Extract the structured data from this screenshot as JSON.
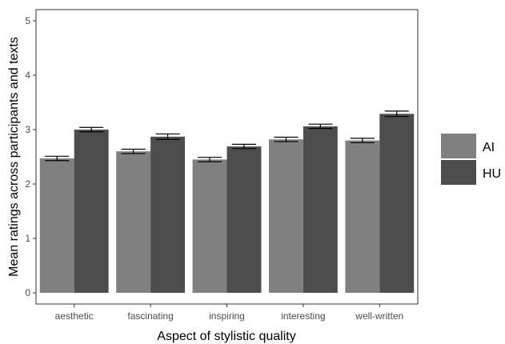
{
  "chart_data": {
    "type": "bar",
    "xlabel": "Aspect of stylistic quality",
    "ylabel": "Mean ratings across participants and texts",
    "ylim": [
      0,
      5
    ],
    "yticks": [
      0,
      1,
      2,
      3,
      4,
      5
    ],
    "categories": [
      "aesthetic",
      "fascinating",
      "inspiring",
      "interesting",
      "well-written"
    ],
    "series": [
      {
        "name": "AI",
        "color": "#808080",
        "values": [
          2.47,
          2.6,
          2.45,
          2.82,
          2.8
        ],
        "errors": [
          0.04,
          0.04,
          0.04,
          0.04,
          0.04
        ]
      },
      {
        "name": "HU",
        "color": "#4d4d4d",
        "values": [
          3.0,
          2.87,
          2.69,
          3.06,
          3.29
        ],
        "errors": [
          0.04,
          0.05,
          0.04,
          0.04,
          0.05
        ]
      }
    ],
    "grid": false,
    "legend_position": "right",
    "error_bars": true
  }
}
